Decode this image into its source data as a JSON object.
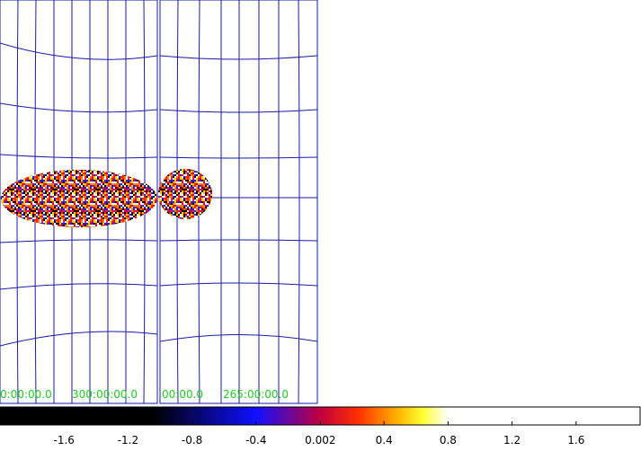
{
  "frames": [
    {
      "labels": [
        "0:00:00.0",
        "300:00:00.0"
      ]
    },
    {
      "labels": [
        "00:00.0",
        "265:00:00.0"
      ]
    }
  ],
  "colorbar": {
    "lim": [
      -2,
      2
    ],
    "ticks": [
      -1.6,
      -1.2,
      -0.8,
      -0.4,
      0.002,
      0.4,
      0.8,
      1.2,
      1.6
    ]
  }
}
